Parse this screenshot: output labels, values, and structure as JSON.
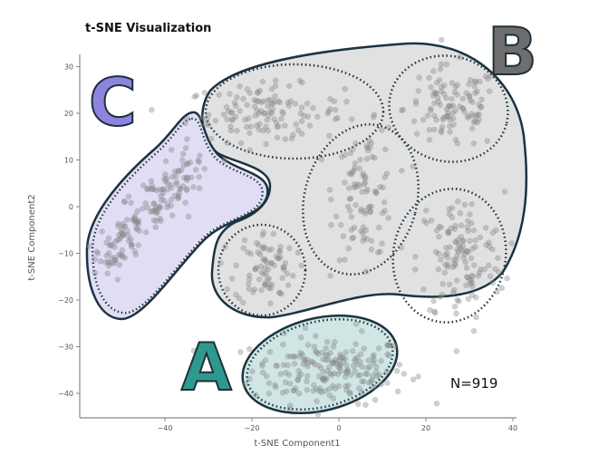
{
  "chart_data": {
    "type": "scatter",
    "title": "t-SNE Visualization",
    "xlabel": "t-SNE Component1",
    "ylabel": "t-SNE Component2",
    "xlim": [
      -59.5,
      40.5
    ],
    "ylim": [
      -45,
      32
    ],
    "xticks": [
      -40,
      -20,
      0,
      20,
      40
    ],
    "yticks": [
      30,
      20,
      10,
      0,
      -10,
      -20,
      -30,
      -40
    ],
    "annotation": "N=919",
    "point_color": "#8a8a8a",
    "clusters": [
      {
        "label": "A",
        "color": "#2e9a8e",
        "fill": "#cfe6e4",
        "groups": [
          {
            "center": [
              -2,
              -35
            ],
            "spread": [
              9,
              3.6
            ],
            "count": 200
          }
        ]
      },
      {
        "label": "B",
        "color": "#6e6e6e",
        "fill": "#e1e1e1",
        "groups": [
          {
            "center": [
              -17,
              20
            ],
            "spread": [
              9,
              3
            ],
            "count": 130
          },
          {
            "center": [
              26,
              21
            ],
            "spread": [
              5.5,
              4.5
            ],
            "count": 110
          },
          {
            "center": [
              6,
              3
            ],
            "spread": [
              3.5,
              7
            ],
            "count": 100
          },
          {
            "center": [
              28,
              -11
            ],
            "spread": [
              5,
              7
            ],
            "count": 130
          },
          {
            "center": [
              -17,
              -13
            ],
            "spread": [
              3.5,
              4
            ],
            "count": 79
          }
        ]
      },
      {
        "label": "C",
        "color": "#8c84df",
        "fill": "#e0ddf5",
        "groups": [
          {
            "band_from": [
              -54,
              -12
            ],
            "band_to": [
              -33,
              10
            ],
            "spread": 2.2,
            "count": 170
          }
        ]
      }
    ]
  }
}
